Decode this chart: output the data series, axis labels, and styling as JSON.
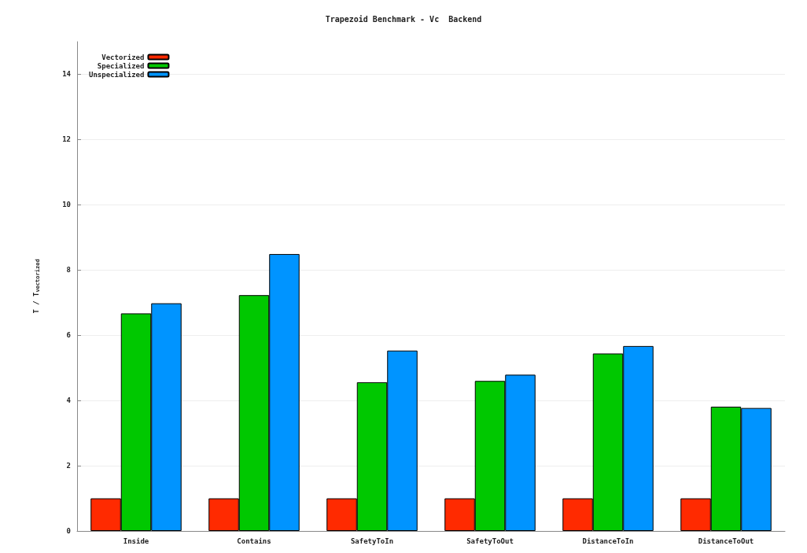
{
  "chart_data": {
    "type": "bar",
    "title": "Trapezoid Benchmark - Vc  Backend",
    "ylabel": "T / T$_{vectorized}$",
    "categories": [
      "Inside",
      "Contains",
      "SafetyToIn",
      "SafetyToOut",
      "DistanceToIn",
      "DistanceToOut"
    ],
    "series": [
      {
        "name": "Vectorized",
        "color": "#ff2a00",
        "values": [
          1,
          1,
          1,
          1,
          1,
          1
        ]
      },
      {
        "name": "Specialized",
        "color": "#00c800",
        "values": [
          6.67,
          7.23,
          4.56,
          4.6,
          5.44,
          3.81
        ]
      },
      {
        "name": "Unspecialized",
        "color": "#0094ff",
        "values": [
          6.98,
          8.49,
          5.53,
          4.79,
          5.67,
          3.77
        ]
      }
    ],
    "ylim": [
      0,
      15
    ],
    "yticks": [
      0,
      2,
      4,
      6,
      8,
      10,
      12,
      14
    ],
    "grid": "y",
    "legend": "top left"
  }
}
